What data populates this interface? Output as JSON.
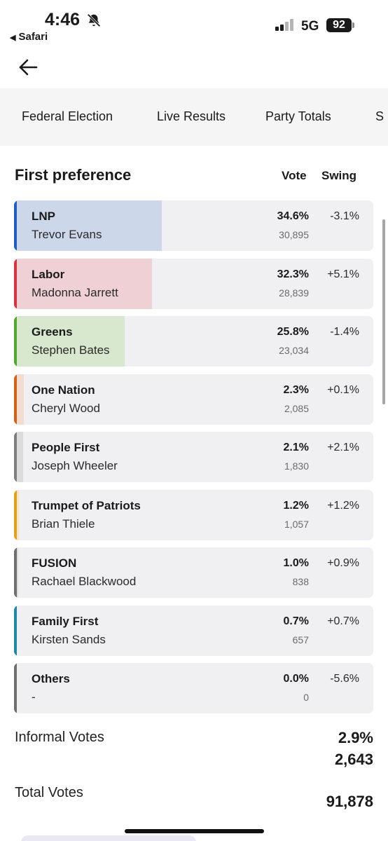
{
  "status_bar": {
    "time": "4:46",
    "back_app": "Safari",
    "network": "5G",
    "battery": "92"
  },
  "icons": {
    "bell": "bell-slash-icon",
    "back": "arrow-left-icon"
  },
  "tabs": [
    {
      "label": "Federal Election"
    },
    {
      "label": "Live Results"
    },
    {
      "label": "Party Totals"
    },
    {
      "label": "S"
    }
  ],
  "table": {
    "title": "First preference",
    "col_vote": "Vote",
    "col_swing": "Swing",
    "rows": [
      {
        "party": "LNP",
        "candidate": "Trevor Evans",
        "pct": "34.6%",
        "votes": "30,895",
        "swing": "-3.1%",
        "color": "#1f5fc4",
        "fill": "#ccd8ea",
        "share": 34.6
      },
      {
        "party": "Labor",
        "candidate": "Madonna Jarrett",
        "pct": "32.3%",
        "votes": "28,839",
        "swing": "+5.1%",
        "color": "#d8343f",
        "fill": "#efd1d5",
        "share": 32.3
      },
      {
        "party": "Greens",
        "candidate": "Stephen Bates",
        "pct": "25.8%",
        "votes": "23,034",
        "swing": "-1.4%",
        "color": "#52a72e",
        "fill": "#d7e8cf",
        "share": 25.8
      },
      {
        "party": "One Nation",
        "candidate": "Cheryl Wood",
        "pct": "2.3%",
        "votes": "2,085",
        "swing": "+0.1%",
        "color": "#d46216",
        "fill": "#f3ddd0",
        "share": 2.3
      },
      {
        "party": "People First",
        "candidate": "Joseph Wheeler",
        "pct": "2.1%",
        "votes": "1,830",
        "swing": "+2.1%",
        "color": "#7f7f7f",
        "fill": "#dcdcdc",
        "share": 2.1
      },
      {
        "party": "Trumpet of Patriots",
        "candidate": "Brian Thiele",
        "pct": "1.2%",
        "votes": "1,057",
        "swing": "+1.2%",
        "color": "#e0a11f",
        "fill": "#f4e6c8",
        "share": 1.2
      },
      {
        "party": "FUSION",
        "candidate": "Rachael Blackwood",
        "pct": "1.0%",
        "votes": "838",
        "swing": "+0.9%",
        "color": "#6e6e6e",
        "fill": "#dedede",
        "share": 1.0
      },
      {
        "party": "Family First",
        "candidate": "Kirsten Sands",
        "pct": "0.7%",
        "votes": "657",
        "swing": "+0.7%",
        "color": "#1a8aa6",
        "fill": "#cfe4ea",
        "share": 0.7
      },
      {
        "party": "Others",
        "candidate": "-",
        "pct": "0.0%",
        "votes": "0",
        "swing": "-5.6%",
        "color": "#6e6e6e",
        "fill": "#dedede",
        "share": 0.0
      }
    ]
  },
  "informal": {
    "label": "Informal Votes",
    "pct": "2.9%",
    "count": "2,643"
  },
  "total": {
    "label": "Total Votes",
    "count": "91,878"
  }
}
